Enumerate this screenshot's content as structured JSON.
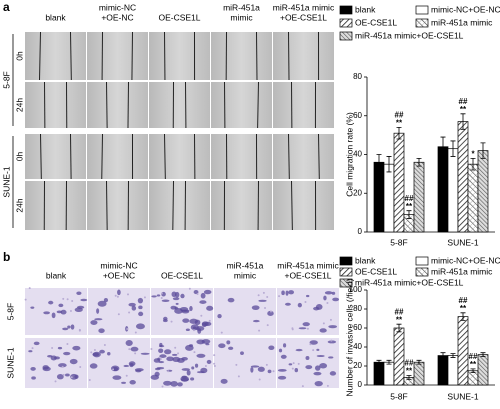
{
  "panels": [
    {
      "label": "a",
      "columns": [
        [
          "blank"
        ],
        [
          "mimic-NC",
          "+OE-NC"
        ],
        [
          "OE-CSE1L"
        ],
        [
          "miR-451a",
          "mimic"
        ],
        [
          "miR-451a mimic",
          "+OE-CSE1L"
        ]
      ],
      "rows": [
        {
          "name": "5-8F",
          "times": [
            "0h",
            "24h"
          ]
        },
        {
          "name": "SUNE-1",
          "times": [
            "0h",
            "24h"
          ]
        }
      ]
    },
    {
      "label": "b",
      "columns": [
        [
          "blank"
        ],
        [
          "mimic-NC",
          "+OE-NC"
        ],
        [
          "OE-CSE1L"
        ],
        [
          "miR-451a",
          "mimic"
        ],
        [
          "miR-451a mimic",
          "+OE-CSE1L"
        ]
      ],
      "rows": [
        {
          "name": "5-8F"
        },
        {
          "name": "SUNE-1"
        }
      ]
    }
  ],
  "chart_data": [
    {
      "type": "bar",
      "ylabel": "Cell migration rate (%)",
      "categories": [
        "5-8F",
        "SUNE-1"
      ],
      "ylim": [
        0,
        80
      ],
      "yticks": [
        0,
        20,
        40,
        60,
        80
      ],
      "series": [
        {
          "name": "blank",
          "pattern": "solid",
          "values": [
            36,
            44
          ],
          "errors": [
            4,
            5
          ]
        },
        {
          "name": "mimic-NC+OE-NC",
          "pattern": "none",
          "values": [
            35,
            43
          ],
          "errors": [
            4,
            4
          ]
        },
        {
          "name": "OE-CSE1L",
          "pattern": "hatch",
          "values": [
            51,
            57
          ],
          "errors": [
            3,
            4
          ],
          "annotations": [
            [
              "##",
              "**"
            ],
            [
              "##",
              "**"
            ]
          ]
        },
        {
          "name": "miR-451a mimic",
          "pattern": "crosshatch",
          "values": [
            9,
            35
          ],
          "errors": [
            2,
            3
          ],
          "annotations": [
            [
              "##",
              "**"
            ],
            [
              "*"
            ]
          ]
        },
        {
          "name": "miR-451a mimic+OE-CSE1L",
          "pattern": "dense-hatch",
          "values": [
            36,
            42
          ],
          "errors": [
            2,
            4
          ]
        }
      ]
    },
    {
      "type": "bar",
      "ylabel": "Number of invasive cells (/field)",
      "categories": [
        "5-8F",
        "SUNE-1"
      ],
      "ylim": [
        0,
        100
      ],
      "yticks": [
        0,
        20,
        40,
        60,
        80,
        100
      ],
      "series": [
        {
          "name": "blank",
          "pattern": "solid",
          "values": [
            24,
            31
          ],
          "errors": [
            2,
            3
          ]
        },
        {
          "name": "mimic-NC+OE-NC",
          "pattern": "none",
          "values": [
            24,
            31
          ],
          "errors": [
            2,
            2
          ]
        },
        {
          "name": "OE-CSE1L",
          "pattern": "hatch",
          "values": [
            60,
            72
          ],
          "errors": [
            4,
            4
          ],
          "annotations": [
            [
              "##",
              "**"
            ],
            [
              "##",
              "**"
            ]
          ]
        },
        {
          "name": "miR-451a mimic",
          "pattern": "crosshatch",
          "values": [
            8,
            15
          ],
          "errors": [
            2,
            2
          ],
          "annotations": [
            [
              "##",
              "**"
            ],
            [
              "##",
              "**"
            ]
          ]
        },
        {
          "name": "miR-451a mimic+OE-CSE1L",
          "pattern": "dense-hatch",
          "values": [
            24,
            32
          ],
          "errors": [
            2,
            2
          ]
        }
      ]
    }
  ]
}
